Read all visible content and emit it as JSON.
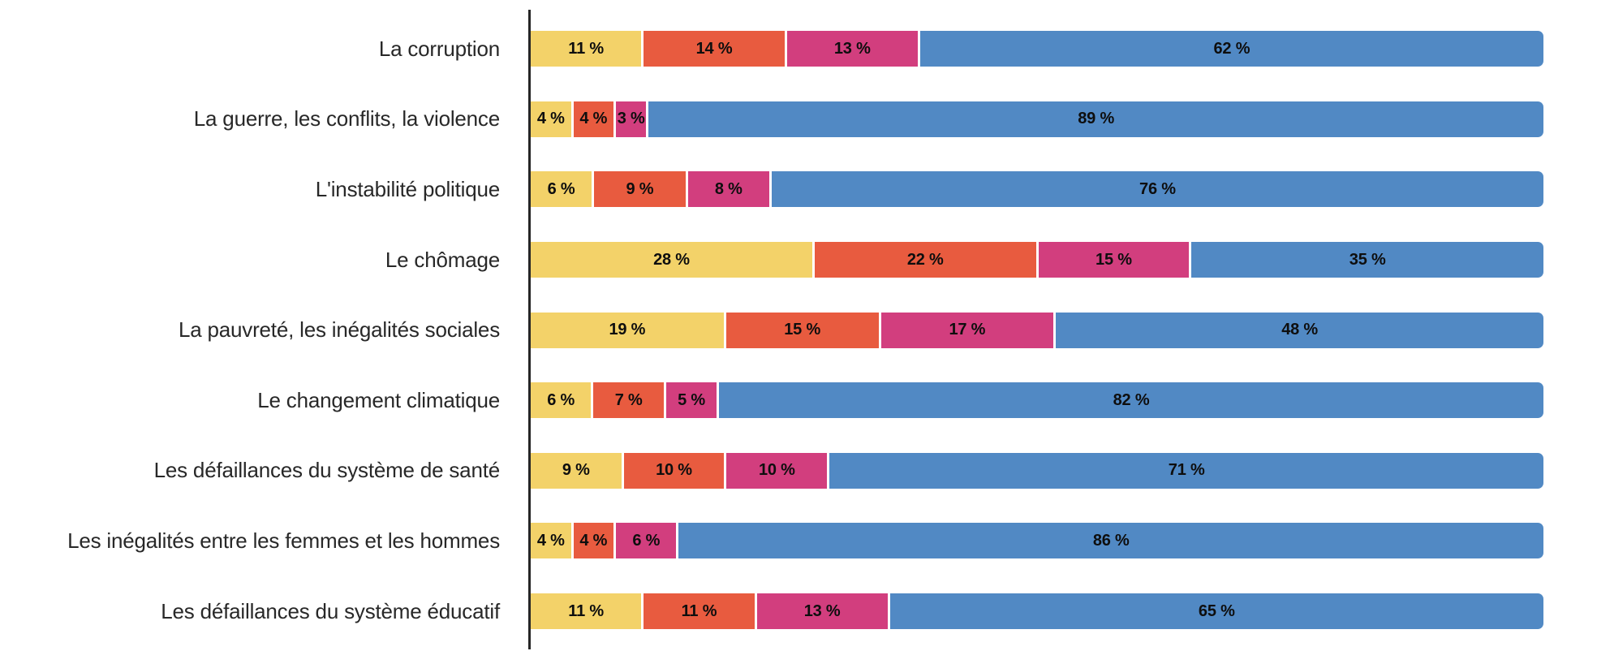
{
  "chart_data": {
    "type": "bar",
    "orientation": "horizontal",
    "stacked": true,
    "title": "",
    "xlabel": "",
    "ylabel": "",
    "xlim": [
      0,
      100
    ],
    "grid": false,
    "legend": false,
    "value_labels_position": "inside-center",
    "value_suffix": " %",
    "categories": [
      "La corruption",
      "La guerre, les conflits, la violence",
      "L'instabilité politique",
      "Le chômage",
      "La pauvreté, les inégalités sociales",
      "Le changement climatique",
      "Les défaillances du système de santé",
      "Les inégalités entre les femmes et les hommes",
      "Les défaillances du système éducatif"
    ],
    "series": [
      {
        "name": "segment-1-yellow",
        "color": "#F3D269",
        "values": [
          11,
          4,
          6,
          28,
          19,
          6,
          9,
          4,
          11
        ]
      },
      {
        "name": "segment-2-orange",
        "color": "#E85B3F",
        "values": [
          14,
          4,
          9,
          22,
          15,
          7,
          10,
          4,
          11
        ]
      },
      {
        "name": "segment-3-magenta",
        "color": "#D23E7E",
        "values": [
          13,
          3,
          8,
          15,
          17,
          5,
          10,
          6,
          13
        ]
      },
      {
        "name": "segment-4-blue",
        "color": "#5189C4",
        "values": [
          62,
          89,
          76,
          35,
          48,
          82,
          71,
          86,
          65
        ]
      }
    ]
  },
  "colors": {
    "background": "#ffffff",
    "axis_line": "#262626",
    "category_label_text": "#282828",
    "value_label_text": "#0e0e0e"
  }
}
